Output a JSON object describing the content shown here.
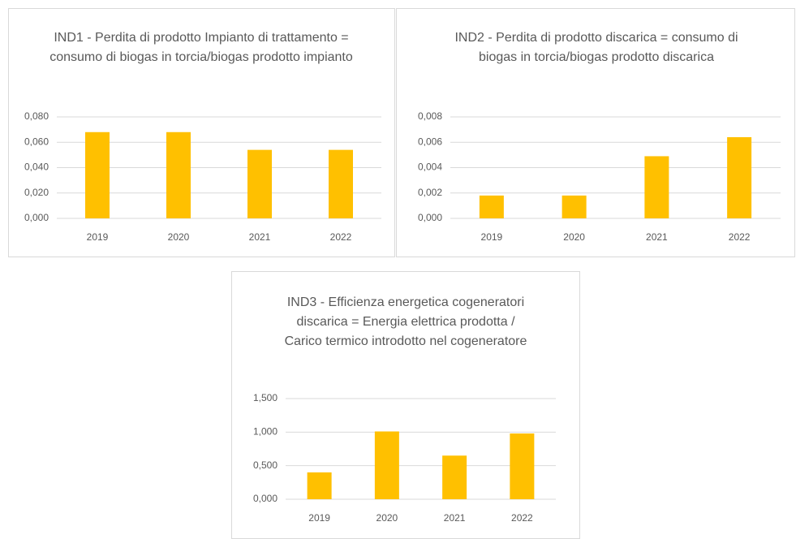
{
  "chart_data": [
    {
      "type": "bar",
      "title": "IND1 - Perdita di prodotto Impianto di trattamento = consumo di biogas in torcia/biogas prodotto impianto",
      "categories": [
        "2019",
        "2020",
        "2021",
        "2022"
      ],
      "values": [
        0.068,
        0.068,
        0.054,
        0.054
      ],
      "color": "#ffc000",
      "ylim": [
        0,
        0.08
      ],
      "yticks": [
        {
          "value": 0,
          "label": "0,000"
        },
        {
          "value": 0.02,
          "label": "0,020"
        },
        {
          "value": 0.04,
          "label": "0,040"
        },
        {
          "value": 0.06,
          "label": "0,060"
        },
        {
          "value": 0.08,
          "label": "0,080"
        }
      ],
      "grid": true
    },
    {
      "type": "bar",
      "title": "IND2 - Perdita di prodotto discarica = consumo di biogas in torcia/biogas prodotto discarica",
      "categories": [
        "2019",
        "2020",
        "2021",
        "2022"
      ],
      "values": [
        0.0018,
        0.0018,
        0.0049,
        0.0064
      ],
      "color": "#ffc000",
      "ylim": [
        0,
        0.008
      ],
      "yticks": [
        {
          "value": 0,
          "label": "0,000"
        },
        {
          "value": 0.002,
          "label": "0,002"
        },
        {
          "value": 0.004,
          "label": "0,004"
        },
        {
          "value": 0.006,
          "label": "0,006"
        },
        {
          "value": 0.008,
          "label": "0,008"
        }
      ],
      "grid": true
    },
    {
      "type": "bar",
      "title": "IND3 - Efficienza energetica cogeneratori discarica = Energia elettrica prodotta / Carico termico introdotto nel cogeneratore",
      "categories": [
        "2019",
        "2020",
        "2021",
        "2022"
      ],
      "values": [
        0.4,
        1.01,
        0.65,
        0.98
      ],
      "color": "#ffc000",
      "ylim": [
        0,
        1.5
      ],
      "yticks": [
        {
          "value": 0,
          "label": "0,000"
        },
        {
          "value": 0.5,
          "label": "0,500"
        },
        {
          "value": 1,
          "label": "1,000"
        },
        {
          "value": 1.5,
          "label": "1,500"
        }
      ],
      "grid": true
    }
  ]
}
